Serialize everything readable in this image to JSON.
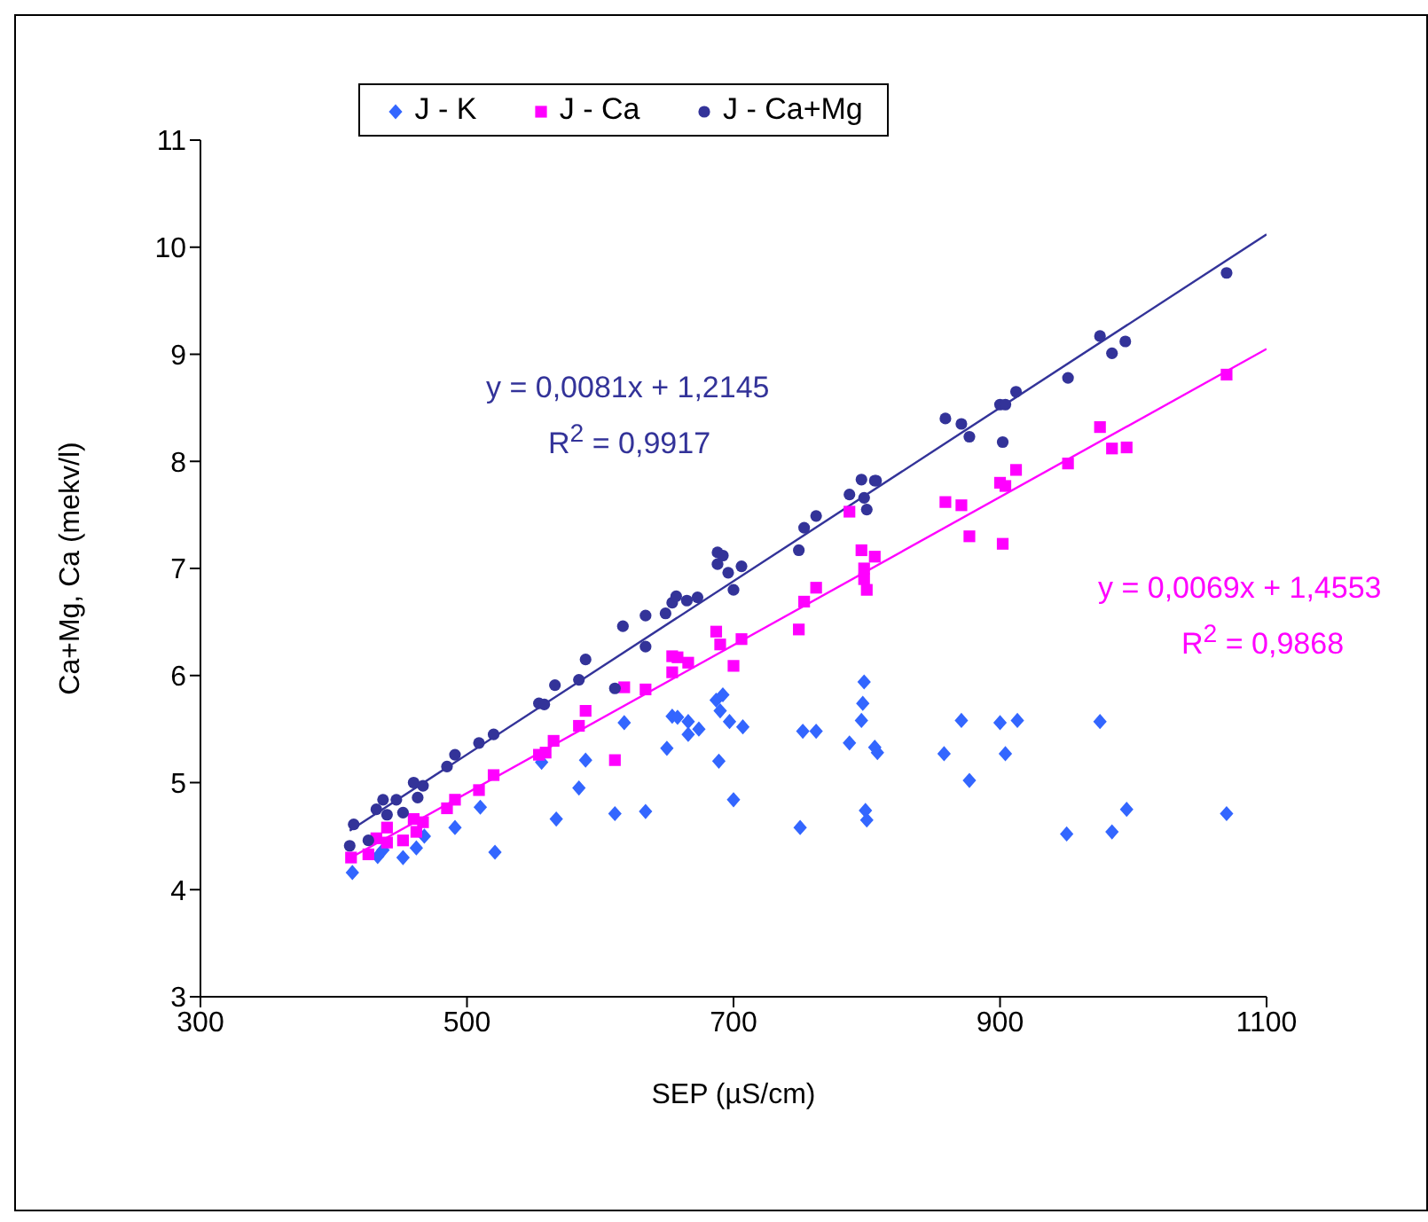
{
  "chart_data": {
    "type": "scatter",
    "xlabel": "SEP (µS/cm)",
    "ylabel": "Ca+Mg, Ca (mekv/l)",
    "xlim": [
      300,
      1100
    ],
    "xticks": [
      300,
      500,
      700,
      900,
      1100
    ],
    "ylim": [
      3,
      11
    ],
    "yticks": [
      3,
      4,
      5,
      6,
      7,
      8,
      9,
      10,
      11
    ],
    "legend": "top",
    "annotations": [
      "y = 0,0081x + 1,2145",
      "R$^{2}$ = 0,9917",
      "y = 0,0069x + 1,4553",
      "R$^{2}$ = 0,9868"
    ],
    "series": [
      {
        "name": "J - K",
        "color": "#3366ff",
        "marker": "diamond",
        "x": [
          414,
          433,
          437,
          452,
          462,
          468,
          491,
          510,
          521,
          556,
          589,
          584,
          567,
          611,
          634,
          618,
          650,
          654,
          658,
          666,
          674,
          666,
          687,
          692,
          690,
          697,
          707,
          689,
          700,
          752,
          762,
          750,
          798,
          797,
          796,
          787,
          806,
          808,
          799,
          800,
          858,
          871,
          877,
          900,
          904,
          913,
          950,
          975,
          984,
          995,
          1070
        ],
        "values": [
          4.16,
          4.31,
          4.37,
          4.3,
          4.39,
          4.5,
          4.58,
          4.77,
          4.35,
          5.19,
          5.21,
          4.95,
          4.66,
          4.71,
          4.73,
          5.56,
          5.32,
          5.62,
          5.61,
          5.57,
          5.5,
          5.45,
          5.77,
          5.82,
          5.67,
          5.57,
          5.52,
          5.2,
          4.84,
          5.48,
          5.48,
          4.58,
          5.94,
          5.74,
          5.58,
          5.37,
          5.33,
          5.28,
          4.74,
          4.65,
          5.27,
          5.58,
          5.02,
          5.56,
          5.27,
          5.58,
          4.52,
          5.57,
          4.54,
          4.75,
          4.71
        ]
      },
      {
        "name": "J - Ca",
        "color": "#ff00ff",
        "marker": "square",
        "x": [
          413,
          426,
          432,
          440,
          440,
          452,
          460,
          467,
          462,
          485,
          491,
          509,
          520,
          554,
          559,
          565,
          584,
          589,
          611,
          618,
          634,
          654,
          654,
          658,
          666,
          687,
          690,
          706,
          700,
          749,
          753,
          762,
          787,
          796,
          806,
          798,
          798,
          800,
          859,
          871,
          877,
          900,
          902,
          904,
          912,
          951,
          975,
          984,
          995,
          1070
        ],
        "values": [
          4.3,
          4.33,
          4.48,
          4.58,
          4.44,
          4.46,
          4.66,
          4.63,
          4.54,
          4.76,
          4.84,
          4.93,
          5.07,
          5.26,
          5.28,
          5.39,
          5.53,
          5.67,
          5.21,
          5.89,
          5.87,
          6.03,
          6.18,
          6.17,
          6.12,
          6.41,
          6.29,
          6.34,
          6.09,
          6.43,
          6.69,
          6.82,
          7.53,
          7.17,
          7.11,
          7,
          6.9,
          6.8,
          7.62,
          7.59,
          7.3,
          7.8,
          7.23,
          7.77,
          7.92,
          7.98,
          8.32,
          8.12,
          8.13,
          8.81
        ]
      },
      {
        "name": "J - Ca+Mg",
        "color": "#333399",
        "marker": "circle",
        "x": [
          412,
          415,
          426,
          432,
          437,
          440,
          447,
          452,
          460,
          467,
          463,
          485,
          491,
          509,
          520,
          554,
          558,
          566,
          584,
          589,
          611,
          617,
          634,
          634,
          649,
          654,
          657,
          665,
          673,
          688,
          692,
          688,
          696,
          706,
          700,
          749,
          753,
          762,
          787,
          796,
          806,
          798,
          807,
          800,
          859,
          871,
          877,
          900,
          902,
          904,
          912,
          951,
          975,
          984,
          994,
          1070
        ],
        "values": [
          4.41,
          4.61,
          4.46,
          4.75,
          4.84,
          4.7,
          4.84,
          4.72,
          5,
          4.97,
          4.86,
          5.15,
          5.26,
          5.37,
          5.45,
          5.74,
          5.73,
          5.91,
          5.96,
          6.15,
          5.88,
          6.46,
          6.27,
          6.56,
          6.58,
          6.68,
          6.74,
          6.7,
          6.73,
          7.15,
          7.12,
          7.04,
          6.96,
          7.02,
          6.8,
          7.17,
          7.38,
          7.49,
          7.69,
          7.83,
          7.82,
          7.66,
          7.82,
          7.55,
          8.4,
          8.35,
          8.23,
          8.53,
          8.18,
          8.53,
          8.65,
          8.78,
          9.17,
          9.01,
          9.12,
          9.76
        ]
      },
      {
        "type": "line",
        "color": "#ff00ff",
        "x": [
          413,
          1100
        ],
        "values": [
          4.3,
          9.05
        ]
      },
      {
        "type": "line",
        "color": "#333399",
        "x": [
          412,
          1100
        ],
        "values": [
          4.55,
          10.12
        ]
      }
    ]
  }
}
